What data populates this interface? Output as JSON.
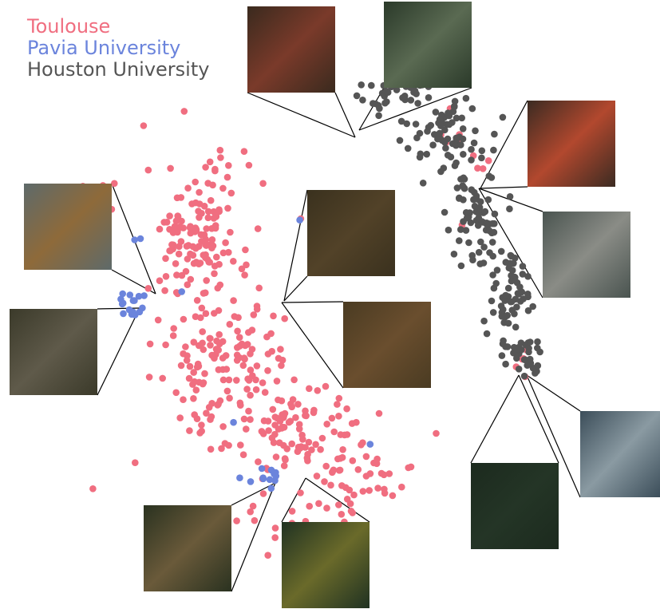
{
  "legend": [
    {
      "label": "Toulouse",
      "color": "#f06e80"
    },
    {
      "label": "Pavia University",
      "color": "#6b84dc"
    },
    {
      "label": "Houston University",
      "color": "#555555"
    }
  ],
  "chart_data": {
    "type": "scatter",
    "title": "",
    "xlabel": "",
    "ylabel": "",
    "axes_visible": false,
    "grid": false,
    "legend_position": "top-left",
    "series": [
      {
        "name": "Toulouse",
        "color": "#f06e80",
        "clusters": [
          {
            "x": 0.3,
            "y": 0.62,
            "sx": 0.04,
            "sy": 0.06,
            "n": 140
          },
          {
            "x": 0.34,
            "y": 0.42,
            "sx": 0.05,
            "sy": 0.05,
            "n": 120
          },
          {
            "x": 0.44,
            "y": 0.3,
            "sx": 0.07,
            "sy": 0.04,
            "n": 110
          },
          {
            "x": 0.54,
            "y": 0.22,
            "sx": 0.06,
            "sy": 0.03,
            "n": 40
          },
          {
            "x": 0.45,
            "y": 0.15,
            "sx": 0.04,
            "sy": 0.03,
            "n": 25
          },
          {
            "x": 0.16,
            "y": 0.68,
            "sx": 0.02,
            "sy": 0.02,
            "n": 8
          },
          {
            "x": 0.7,
            "y": 0.76,
            "sx": 0.02,
            "sy": 0.04,
            "n": 10
          },
          {
            "x": 0.85,
            "y": 0.58,
            "sx": 0.01,
            "sy": 0.03,
            "n": 8
          },
          {
            "x": 0.63,
            "y": 0.46,
            "sx": 0.02,
            "sy": 0.01,
            "n": 6
          },
          {
            "x": 0.79,
            "y": 0.4,
            "sx": 0.01,
            "sy": 0.02,
            "n": 5
          }
        ]
      },
      {
        "name": "Pavia University",
        "color": "#6b84dc",
        "clusters": [
          {
            "x": 0.2,
            "y": 0.5,
            "sx": 0.01,
            "sy": 0.015,
            "n": 16
          },
          {
            "x": 0.4,
            "y": 0.22,
            "sx": 0.015,
            "sy": 0.01,
            "n": 12
          },
          {
            "x": 0.21,
            "y": 0.61,
            "sx": 0.004,
            "sy": 0.004,
            "n": 2
          },
          {
            "x": 0.53,
            "y": 0.64,
            "sx": 0.004,
            "sy": 0.004,
            "n": 1
          },
          {
            "x": 0.35,
            "y": 0.31,
            "sx": 0.004,
            "sy": 0.004,
            "n": 1
          },
          {
            "x": 0.56,
            "y": 0.27,
            "sx": 0.004,
            "sy": 0.004,
            "n": 1
          },
          {
            "x": 0.27,
            "y": 0.53,
            "sx": 0.004,
            "sy": 0.004,
            "n": 1
          },
          {
            "x": 0.45,
            "y": 0.64,
            "sx": 0.004,
            "sy": 0.004,
            "n": 1
          }
        ]
      },
      {
        "name": "Houston University",
        "color": "#555555",
        "clusters": [
          {
            "x": 0.6,
            "y": 0.85,
            "sx": 0.04,
            "sy": 0.02,
            "n": 40
          },
          {
            "x": 0.68,
            "y": 0.78,
            "sx": 0.03,
            "sy": 0.03,
            "n": 60
          },
          {
            "x": 0.72,
            "y": 0.66,
            "sx": 0.02,
            "sy": 0.04,
            "n": 70
          },
          {
            "x": 0.77,
            "y": 0.52,
            "sx": 0.015,
            "sy": 0.04,
            "n": 60
          },
          {
            "x": 0.79,
            "y": 0.42,
            "sx": 0.015,
            "sy": 0.02,
            "n": 30
          }
        ]
      }
    ]
  },
  "thumbnails": [
    {
      "name": "thumb-top-left",
      "c1": "#3a2a1e",
      "c2": "#7a3a2a"
    },
    {
      "name": "thumb-top-mid",
      "c1": "#2b3a2a",
      "c2": "#5a6a52"
    },
    {
      "name": "thumb-top-right",
      "c1": "#3b2b22",
      "c2": "#b2482e"
    },
    {
      "name": "thumb-right-1",
      "c1": "#4a5450",
      "c2": "#8a8c86"
    },
    {
      "name": "thumb-center-top",
      "c1": "#3a311e",
      "c2": "#524228"
    },
    {
      "name": "thumb-center-mid",
      "c1": "#4a3b22",
      "c2": "#6a4e2e"
    },
    {
      "name": "thumb-left-top",
      "c1": "#5e6a6a",
      "c2": "#8e6a3a"
    },
    {
      "name": "thumb-left-mid",
      "c1": "#3b3a2a",
      "c2": "#5f5a4a"
    },
    {
      "name": "thumb-right-2",
      "c1": "#3c4e5a",
      "c2": "#8a9aa2"
    },
    {
      "name": "thumb-bottom-right",
      "c1": "#1c2a1e",
      "c2": "#243526"
    },
    {
      "name": "thumb-bottom-left",
      "c1": "#2a3220",
      "c2": "#6a5a3a"
    },
    {
      "name": "thumb-bottom-mid",
      "c1": "#203222",
      "c2": "#6a6a2a"
    }
  ]
}
